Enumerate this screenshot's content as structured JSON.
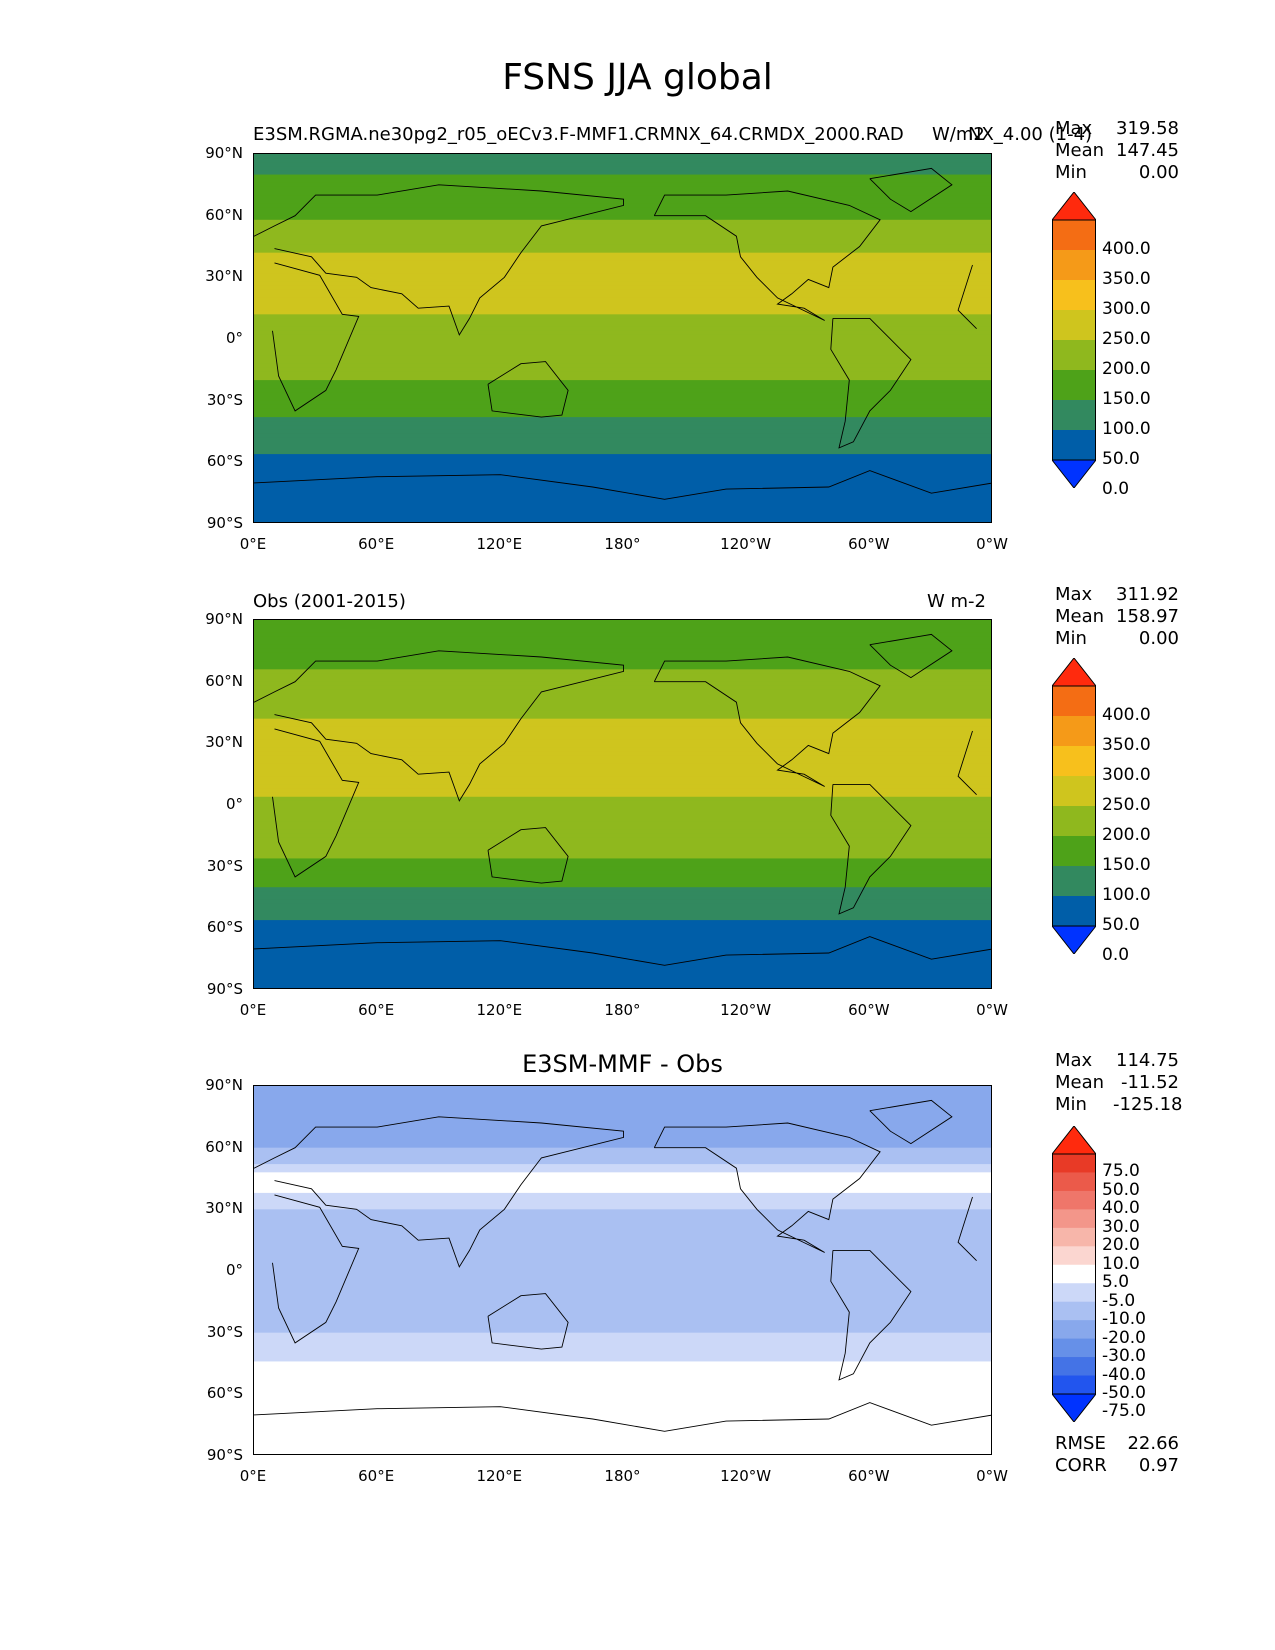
{
  "title": "FSNS JJA global",
  "panels": [
    {
      "left_title": "E3SM.RGMA.ne30pg2_r05_oECv3.F-MMF1.CRMNX_64.CRMDX_2000.RAD",
      "right_title": "W/m2",
      "right_title_overlap": "NX_4.00 (1-4)",
      "center_title": "",
      "stats": {
        "max_label": "Max",
        "max": "319.58",
        "mean_label": "Mean",
        "mean": "147.45",
        "min_label": "Min",
        "min": "0.00"
      },
      "colorbar_labels": [
        "400.0",
        "350.0",
        "300.0",
        "250.0",
        "200.0",
        "150.0",
        "100.0",
        "50.0",
        "0.0"
      ]
    },
    {
      "left_title": "Obs (2001-2015)",
      "right_title": "W m-2",
      "center_title": "",
      "stats": {
        "max_label": "Max",
        "max": "311.92",
        "mean_label": "Mean",
        "mean": "158.97",
        "min_label": "Min",
        "min": "0.00"
      },
      "colorbar_labels": [
        "400.0",
        "350.0",
        "300.0",
        "250.0",
        "200.0",
        "150.0",
        "100.0",
        "50.0",
        "0.0"
      ]
    },
    {
      "left_title": "",
      "right_title": "",
      "center_title": "E3SM-MMF - Obs",
      "stats": {
        "max_label": "Max",
        "max": "114.75",
        "mean_label": "Mean",
        "mean": "-11.52",
        "min_label": "Min",
        "min": "-125.18"
      },
      "colorbar_labels": [
        "75.0",
        "50.0",
        "40.0",
        "30.0",
        "20.0",
        "10.0",
        "5.0",
        "-5.0",
        "-10.0",
        "-20.0",
        "-30.0",
        "-40.0",
        "-50.0",
        "-75.0"
      ],
      "footer": {
        "rmse_label": "RMSE",
        "rmse": "22.66",
        "corr_label": "CORR",
        "corr": "0.97"
      }
    }
  ],
  "lat_ticks": [
    "90°N",
    "60°N",
    "30°N",
    "0°",
    "30°S",
    "60°S",
    "90°S"
  ],
  "lon_ticks": [
    "0°E",
    "60°E",
    "120°E",
    "180°",
    "120°W",
    "60°W",
    "0°W"
  ],
  "colors": {
    "abs_scale": [
      "#0033ff",
      "#005ea8",
      "#32895f",
      "#4ea219",
      "#8fb81e",
      "#cfc51e",
      "#f7c01c",
      "#f59a18",
      "#f46d14",
      "#ff2a0d"
    ],
    "diff_scale": [
      "#0033ff",
      "#2255ee",
      "#4473e6",
      "#6690e8",
      "#88a8ec",
      "#aac0f2",
      "#ccd8f8",
      "#ffffff",
      "#fbd6d0",
      "#f7b6aa",
      "#f3968a",
      "#ef766a",
      "#eb5a4a",
      "#e83a26",
      "#ff2a0d"
    ]
  },
  "chart_data": [
    {
      "type": "heatmap",
      "title": "E3SM.RGMA.ne30pg2_r05_oECv3.F-MMF1.CRMNX_64.CRMDX_2000.RADNX_4.00 (1-4)",
      "units": "W/m2",
      "xlabel": "",
      "ylabel": "",
      "xlim": [
        0,
        360
      ],
      "ylim": [
        -90,
        90
      ],
      "levels": [
        0,
        50,
        100,
        150,
        200,
        250,
        300,
        350,
        400
      ],
      "approx_zonal_mean": {
        "lat": [
          90,
          75,
          60,
          45,
          30,
          15,
          0,
          -15,
          -30,
          -45,
          -60,
          -75,
          -85
        ],
        "value": [
          80,
          110,
          140,
          190,
          230,
          210,
          170,
          160,
          130,
          70,
          40,
          20,
          0
        ]
      },
      "stats": {
        "max": 319.58,
        "mean": 147.45,
        "min": 0.0
      }
    },
    {
      "type": "heatmap",
      "title": "Obs (2001-2015)",
      "units": "W m-2",
      "xlabel": "",
      "ylabel": "",
      "xlim": [
        0,
        360
      ],
      "ylim": [
        -90,
        90
      ],
      "levels": [
        0,
        50,
        100,
        150,
        200,
        250,
        300,
        350,
        400
      ],
      "approx_zonal_mean": {
        "lat": [
          90,
          75,
          60,
          45,
          30,
          15,
          0,
          -15,
          -30,
          -45,
          -60,
          -75,
          -85
        ],
        "value": [
          100,
          130,
          160,
          190,
          240,
          225,
          190,
          175,
          140,
          75,
          40,
          20,
          0
        ]
      },
      "stats": {
        "max": 311.92,
        "mean": 158.97,
        "min": 0.0
      }
    },
    {
      "type": "heatmap",
      "title": "E3SM-MMF - Obs",
      "xlabel": "",
      "ylabel": "",
      "xlim": [
        0,
        360
      ],
      "ylim": [
        -90,
        90
      ],
      "levels": [
        -75,
        -50,
        -40,
        -30,
        -20,
        -10,
        -5,
        5,
        10,
        20,
        30,
        40,
        50,
        75
      ],
      "approx_zonal_mean": {
        "lat": [
          90,
          75,
          60,
          45,
          30,
          15,
          0,
          -15,
          -30,
          -45,
          -60,
          -75,
          -85
        ],
        "value": [
          -20,
          -25,
          -20,
          0,
          -10,
          -15,
          -20,
          -15,
          -10,
          -5,
          0,
          0,
          0
        ]
      },
      "stats": {
        "max": 114.75,
        "mean": -11.52,
        "min": -125.18,
        "rmse": 22.66,
        "corr": 0.97
      }
    }
  ]
}
